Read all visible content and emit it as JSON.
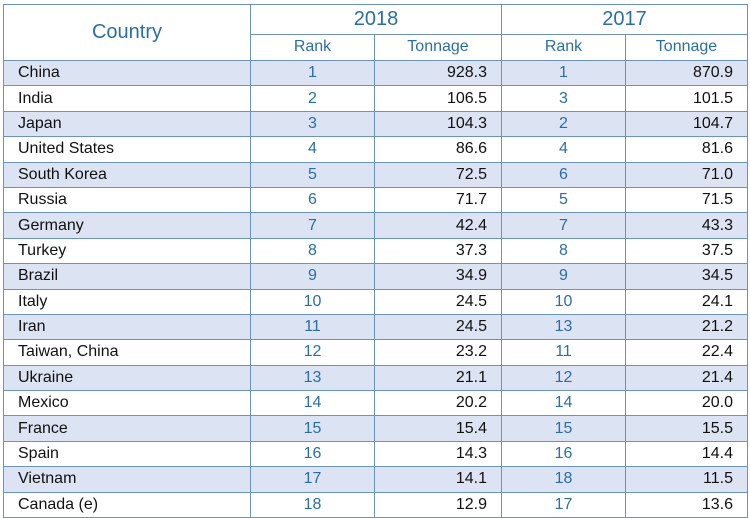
{
  "header": {
    "country": "Country",
    "year_a": "2018",
    "year_b": "2017",
    "rank": "Rank",
    "tonnage": "Tonnage"
  },
  "rows": [
    {
      "country": "China",
      "rank_2018": "1",
      "tonnage_2018": "928.3",
      "rank_2017": "1",
      "tonnage_2017": "870.9"
    },
    {
      "country": "India",
      "rank_2018": "2",
      "tonnage_2018": "106.5",
      "rank_2017": "3",
      "tonnage_2017": "101.5"
    },
    {
      "country": "Japan",
      "rank_2018": "3",
      "tonnage_2018": "104.3",
      "rank_2017": "2",
      "tonnage_2017": "104.7"
    },
    {
      "country": "United States",
      "rank_2018": "4",
      "tonnage_2018": "86.6",
      "rank_2017": "4",
      "tonnage_2017": "81.6"
    },
    {
      "country": "South Korea",
      "rank_2018": "5",
      "tonnage_2018": "72.5",
      "rank_2017": "6",
      "tonnage_2017": "71.0"
    },
    {
      "country": "Russia",
      "rank_2018": "6",
      "tonnage_2018": "71.7",
      "rank_2017": "5",
      "tonnage_2017": "71.5"
    },
    {
      "country": "Germany",
      "rank_2018": "7",
      "tonnage_2018": "42.4",
      "rank_2017": "7",
      "tonnage_2017": "43.3"
    },
    {
      "country": "Turkey",
      "rank_2018": "8",
      "tonnage_2018": "37.3",
      "rank_2017": "8",
      "tonnage_2017": "37.5"
    },
    {
      "country": "Brazil",
      "rank_2018": "9",
      "tonnage_2018": "34.9",
      "rank_2017": "9",
      "tonnage_2017": "34.5"
    },
    {
      "country": "Italy",
      "rank_2018": "10",
      "tonnage_2018": "24.5",
      "rank_2017": "10",
      "tonnage_2017": "24.1"
    },
    {
      "country": "Iran",
      "rank_2018": "11",
      "tonnage_2018": "24.5",
      "rank_2017": "13",
      "tonnage_2017": "21.2"
    },
    {
      "country": "Taiwan, China",
      "rank_2018": "12",
      "tonnage_2018": "23.2",
      "rank_2017": "11",
      "tonnage_2017": "22.4"
    },
    {
      "country": "Ukraine",
      "rank_2018": "13",
      "tonnage_2018": "21.1",
      "rank_2017": "12",
      "tonnage_2017": "21.4"
    },
    {
      "country": "Mexico",
      "rank_2018": "14",
      "tonnage_2018": "20.2",
      "rank_2017": "14",
      "tonnage_2017": "20.0"
    },
    {
      "country": "France",
      "rank_2018": "15",
      "tonnage_2018": "15.4",
      "rank_2017": "15",
      "tonnage_2017": "15.5"
    },
    {
      "country": "Spain",
      "rank_2018": "16",
      "tonnage_2018": "14.3",
      "rank_2017": "16",
      "tonnage_2017": "14.4"
    },
    {
      "country": "Vietnam",
      "rank_2018": "17",
      "tonnage_2018": "14.1",
      "rank_2017": "18",
      "tonnage_2017": "11.5"
    },
    {
      "country": "Canada (e)",
      "rank_2018": "18",
      "tonnage_2018": "12.9",
      "rank_2017": "17",
      "tonnage_2017": "13.6"
    }
  ],
  "colors": {
    "header_text": "#2a6ea6",
    "rank_text": "#2a6ea6",
    "row_shade": "#dce3f2",
    "grid": "#6a93bf"
  }
}
